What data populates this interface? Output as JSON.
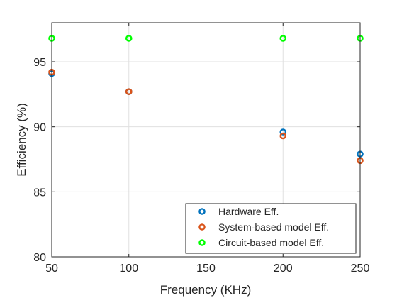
{
  "chart_data": {
    "type": "scatter",
    "xlabel": "Frequency (KHz)",
    "ylabel": "Efficiency (%)",
    "xlim": [
      50,
      250
    ],
    "ylim": [
      80,
      98
    ],
    "xticks": [
      50,
      100,
      150,
      200,
      250
    ],
    "yticks": [
      80,
      85,
      90,
      95
    ],
    "grid": true,
    "legend_position": "bottom-right",
    "series": [
      {
        "name": "Hardware Eff.",
        "color": "#0072BD",
        "x": [
          50,
          100,
          200,
          250
        ],
        "y": [
          94.1,
          92.7,
          89.6,
          87.9
        ]
      },
      {
        "name": "System-based model Eff.",
        "color": "#D95319",
        "x": [
          50,
          100,
          200,
          250
        ],
        "y": [
          94.2,
          92.7,
          89.3,
          87.4
        ]
      },
      {
        "name": "Circuit-based model Eff.",
        "color": "#00FF00",
        "x": [
          50,
          100,
          200,
          250
        ],
        "y": [
          96.8,
          96.8,
          96.8,
          96.8
        ]
      }
    ]
  }
}
